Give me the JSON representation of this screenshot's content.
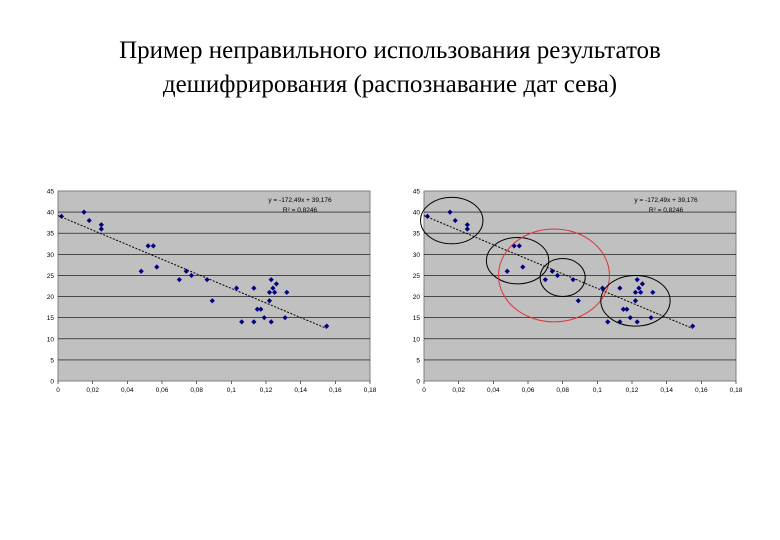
{
  "slide": {
    "title_line1": "Пример неправильного использования результатов",
    "title_line2": "дешифрирования (распознавание дат сева)"
  },
  "chart_data": [
    {
      "type": "scatter",
      "title": "",
      "xlabel": "",
      "ylabel": "",
      "xlim": [
        0,
        0.18
      ],
      "ylim": [
        0,
        45
      ],
      "x_ticks": [
        "0",
        "0,02",
        "0,04",
        "0,06",
        "0,08",
        "0,1",
        "0,12",
        "0,14",
        "0,16",
        "0,18"
      ],
      "y_ticks": [
        "0",
        "5",
        "10",
        "15",
        "20",
        "25",
        "30",
        "35",
        "40",
        "45"
      ],
      "grid": "horizontal",
      "plot_background": "#c0c0c0",
      "marker_color": "#000080",
      "equation": "y = -172,49x + 39,176",
      "r_squared": "R² = 0,8246",
      "trendline": {
        "slope": -172.49,
        "intercept": 39.176,
        "x_range": [
          0,
          0.155
        ]
      },
      "points": [
        {
          "x": 0.002,
          "y": 39
        },
        {
          "x": 0.015,
          "y": 40
        },
        {
          "x": 0.018,
          "y": 38
        },
        {
          "x": 0.025,
          "y": 37
        },
        {
          "x": 0.025,
          "y": 36
        },
        {
          "x": 0.048,
          "y": 26
        },
        {
          "x": 0.052,
          "y": 32
        },
        {
          "x": 0.055,
          "y": 32
        },
        {
          "x": 0.057,
          "y": 27
        },
        {
          "x": 0.07,
          "y": 24
        },
        {
          "x": 0.074,
          "y": 26
        },
        {
          "x": 0.077,
          "y": 25
        },
        {
          "x": 0.086,
          "y": 24
        },
        {
          "x": 0.089,
          "y": 19
        },
        {
          "x": 0.103,
          "y": 22
        },
        {
          "x": 0.106,
          "y": 14
        },
        {
          "x": 0.113,
          "y": 22
        },
        {
          "x": 0.113,
          "y": 14
        },
        {
          "x": 0.115,
          "y": 17
        },
        {
          "x": 0.117,
          "y": 17
        },
        {
          "x": 0.119,
          "y": 15
        },
        {
          "x": 0.122,
          "y": 21
        },
        {
          "x": 0.122,
          "y": 19
        },
        {
          "x": 0.123,
          "y": 14
        },
        {
          "x": 0.123,
          "y": 24
        },
        {
          "x": 0.124,
          "y": 22
        },
        {
          "x": 0.125,
          "y": 21
        },
        {
          "x": 0.126,
          "y": 23
        },
        {
          "x": 0.131,
          "y": 15
        },
        {
          "x": 0.132,
          "y": 21
        },
        {
          "x": 0.155,
          "y": 13
        }
      ]
    },
    {
      "type": "scatter",
      "title": "",
      "xlabel": "",
      "ylabel": "",
      "xlim": [
        0,
        0.18
      ],
      "ylim": [
        0,
        45
      ],
      "x_ticks": [
        "0",
        "0,02",
        "0,04",
        "0,06",
        "0,08",
        "0,1",
        "0,12",
        "0,14",
        "0,16",
        "0,18"
      ],
      "y_ticks": [
        "0",
        "5",
        "10",
        "15",
        "20",
        "25",
        "30",
        "35",
        "40",
        "45"
      ],
      "grid": "horizontal",
      "plot_background": "#c0c0c0",
      "marker_color": "#000080",
      "equation": "y = -172,49x + 39,176",
      "r_squared": "R² = 0,8246",
      "trendline": {
        "slope": -172.49,
        "intercept": 39.176,
        "x_range": [
          0,
          0.155
        ]
      },
      "points": [
        {
          "x": 0.002,
          "y": 39
        },
        {
          "x": 0.015,
          "y": 40
        },
        {
          "x": 0.018,
          "y": 38
        },
        {
          "x": 0.025,
          "y": 37
        },
        {
          "x": 0.025,
          "y": 36
        },
        {
          "x": 0.048,
          "y": 26
        },
        {
          "x": 0.052,
          "y": 32
        },
        {
          "x": 0.055,
          "y": 32
        },
        {
          "x": 0.057,
          "y": 27
        },
        {
          "x": 0.07,
          "y": 24
        },
        {
          "x": 0.074,
          "y": 26
        },
        {
          "x": 0.077,
          "y": 25
        },
        {
          "x": 0.086,
          "y": 24
        },
        {
          "x": 0.089,
          "y": 19
        },
        {
          "x": 0.103,
          "y": 22
        },
        {
          "x": 0.106,
          "y": 14
        },
        {
          "x": 0.113,
          "y": 22
        },
        {
          "x": 0.113,
          "y": 14
        },
        {
          "x": 0.115,
          "y": 17
        },
        {
          "x": 0.117,
          "y": 17
        },
        {
          "x": 0.119,
          "y": 15
        },
        {
          "x": 0.122,
          "y": 21
        },
        {
          "x": 0.122,
          "y": 19
        },
        {
          "x": 0.123,
          "y": 14
        },
        {
          "x": 0.123,
          "y": 24
        },
        {
          "x": 0.124,
          "y": 22
        },
        {
          "x": 0.125,
          "y": 21
        },
        {
          "x": 0.126,
          "y": 23
        },
        {
          "x": 0.131,
          "y": 15
        },
        {
          "x": 0.132,
          "y": 21
        },
        {
          "x": 0.155,
          "y": 13
        }
      ],
      "cluster_circles": [
        {
          "cx": 0.016,
          "cy": 38,
          "r_x": 0.018,
          "r_y": 5.5,
          "color": "#000000"
        },
        {
          "cx": 0.054,
          "cy": 28.5,
          "r_x": 0.018,
          "r_y": 5.5,
          "color": "#000000"
        },
        {
          "cx": 0.075,
          "cy": 25,
          "r_x": 0.032,
          "r_y": 11,
          "color": "#e0303a"
        },
        {
          "cx": 0.08,
          "cy": 24.5,
          "r_x": 0.013,
          "r_y": 4.5,
          "color": "#000000"
        },
        {
          "cx": 0.122,
          "cy": 19,
          "r_x": 0.02,
          "r_y": 6,
          "color": "#000000"
        }
      ]
    }
  ]
}
